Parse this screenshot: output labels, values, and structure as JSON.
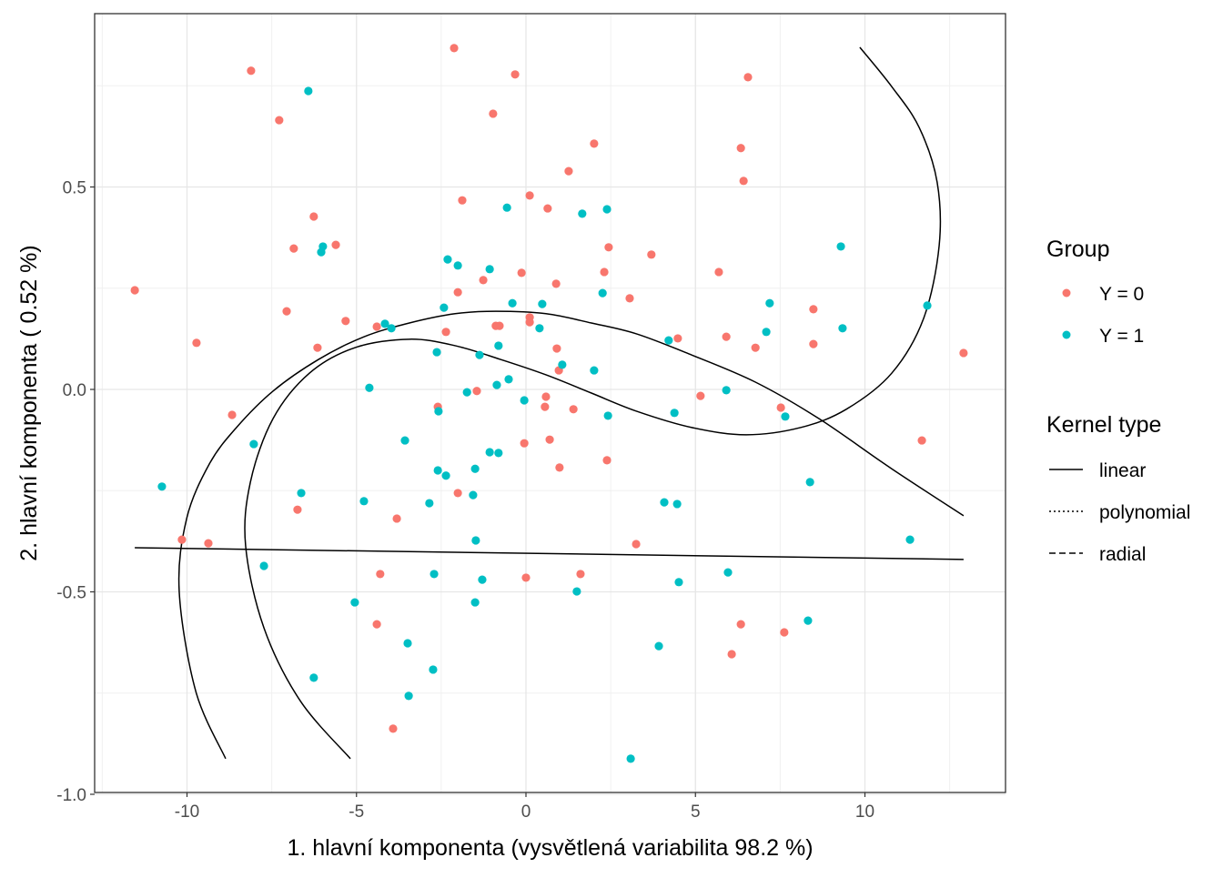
{
  "chart_data": {
    "type": "scatter",
    "xlabel": "1. hlavní komponenta (vysvětlená variabilita 98.2 %)",
    "ylabel": "2. hlavní komponenta ( 0.52 %)",
    "xlim": [
      -12.72,
      14.15
    ],
    "ylim": [
      -1.0,
      0.928
    ],
    "x_ticks": [
      "-10",
      "-5",
      "0",
      "5",
      "10"
    ],
    "x_tick_values": [
      -10,
      -5,
      0,
      5,
      10
    ],
    "y_ticks": [
      "-1.0",
      "-0.5",
      "0.0",
      "0.5"
    ],
    "y_tick_values": [
      -1.0,
      -0.5,
      0.0,
      0.5
    ],
    "grid": true,
    "legend_placement": "right",
    "legend_group": {
      "title": "Group",
      "entries": [
        {
          "label": "Y = 0",
          "color": "#F8766D"
        },
        {
          "label": "Y = 1",
          "color": "#00BFC4"
        }
      ]
    },
    "legend_kernel": {
      "title": "Kernel type",
      "entries": [
        {
          "label": "linear",
          "dash": "none"
        },
        {
          "label": "polynomial",
          "dash": "2,3"
        },
        {
          "label": "radial",
          "dash": "7,4"
        }
      ]
    },
    "series": [
      {
        "name": "Y = 0",
        "color": "#F8766D",
        "points": [
          [
            -11.54,
            0.245
          ],
          [
            -8.11,
            0.787
          ],
          [
            -7.28,
            0.665
          ],
          [
            -9.72,
            0.115
          ],
          [
            -8.67,
            -0.063
          ],
          [
            -10.15,
            -0.371
          ],
          [
            -9.37,
            -0.38
          ],
          [
            -7.06,
            0.193
          ],
          [
            -6.85,
            0.348
          ],
          [
            -6.26,
            0.427
          ],
          [
            -6.15,
            0.103
          ],
          [
            -5.61,
            0.357
          ],
          [
            -5.32,
            0.169
          ],
          [
            -6.74,
            -0.297
          ],
          [
            -4.4,
            0.155
          ],
          [
            -4.3,
            -0.456
          ],
          [
            -4.4,
            -0.58
          ],
          [
            -3.81,
            -0.319
          ],
          [
            -3.92,
            -0.838
          ],
          [
            -2.12,
            0.843
          ],
          [
            -0.32,
            0.778
          ],
          [
            -0.97,
            0.681
          ],
          [
            -1.88,
            0.467
          ],
          [
            -2.01,
            0.24
          ],
          [
            -2.36,
            0.142
          ],
          [
            -2.6,
            -0.043
          ],
          [
            -2.01,
            -0.256
          ],
          [
            -1.45,
            -0.004
          ],
          [
            -1.26,
            0.27
          ],
          [
            -0.89,
            0.157
          ],
          [
            -0.78,
            0.157
          ],
          [
            -0.13,
            0.288
          ],
          [
            0.11,
            0.479
          ],
          [
            0.11,
            0.178
          ],
          [
            0.11,
            0.166
          ],
          [
            -0.05,
            -0.133
          ],
          [
            0.0,
            -0.465
          ],
          [
            0.64,
            0.447
          ],
          [
            0.89,
            0.261
          ],
          [
            0.91,
            0.101
          ],
          [
            0.97,
            0.047
          ],
          [
            0.99,
            -0.193
          ],
          [
            0.59,
            -0.018
          ],
          [
            0.56,
            -0.043
          ],
          [
            0.7,
            -0.124
          ],
          [
            1.26,
            0.539
          ],
          [
            2.01,
            0.607
          ],
          [
            1.4,
            -0.049
          ],
          [
            2.31,
            0.29
          ],
          [
            2.44,
            0.351
          ],
          [
            2.39,
            -0.175
          ],
          [
            1.61,
            -0.456
          ],
          [
            3.06,
            0.225
          ],
          [
            3.25,
            -0.382
          ],
          [
            3.7,
            0.333
          ],
          [
            4.48,
            0.126
          ],
          [
            5.15,
            -0.016
          ],
          [
            5.69,
            0.29
          ],
          [
            5.91,
            0.13
          ],
          [
            6.34,
            0.596
          ],
          [
            6.42,
            0.515
          ],
          [
            6.55,
            0.771
          ],
          [
            6.77,
            0.103
          ],
          [
            6.34,
            -0.58
          ],
          [
            6.07,
            -0.654
          ],
          [
            7.52,
            -0.045
          ],
          [
            7.62,
            -0.6
          ],
          [
            8.48,
            0.198
          ],
          [
            8.48,
            0.112
          ],
          [
            11.68,
            -0.126
          ],
          [
            12.91,
            0.09
          ]
        ]
      },
      {
        "name": "Y = 1",
        "color": "#00BFC4",
        "points": [
          [
            -6.42,
            0.737
          ],
          [
            -5.99,
            0.353
          ],
          [
            -6.04,
            0.339
          ],
          [
            -10.74,
            -0.24
          ],
          [
            -8.03,
            -0.135
          ],
          [
            -7.73,
            -0.436
          ],
          [
            -6.63,
            -0.256
          ],
          [
            -6.26,
            -0.712
          ],
          [
            -5.05,
            -0.526
          ],
          [
            -4.78,
            -0.276
          ],
          [
            -4.62,
            0.004
          ],
          [
            -4.16,
            0.162
          ],
          [
            -3.97,
            0.151
          ],
          [
            -3.57,
            -0.126
          ],
          [
            -3.49,
            -0.627
          ],
          [
            -3.46,
            -0.757
          ],
          [
            -2.85,
            -0.281
          ],
          [
            -2.71,
            -0.456
          ],
          [
            -2.74,
            -0.692
          ],
          [
            -2.63,
            0.092
          ],
          [
            -2.6,
            -0.2
          ],
          [
            -2.58,
            -0.054
          ],
          [
            -2.36,
            -0.213
          ],
          [
            -2.42,
            0.202
          ],
          [
            -2.31,
            0.321
          ],
          [
            -2.01,
            0.306
          ],
          [
            -1.74,
            -0.007
          ],
          [
            -1.5,
            -0.196
          ],
          [
            -1.56,
            -0.261
          ],
          [
            -1.48,
            -0.373
          ],
          [
            -1.5,
            -0.526
          ],
          [
            -1.37,
            0.085
          ],
          [
            -1.29,
            -0.47
          ],
          [
            -1.07,
            0.297
          ],
          [
            -1.07,
            -0.155
          ],
          [
            -0.81,
            -0.157
          ],
          [
            -0.86,
            0.011
          ],
          [
            -0.81,
            0.108
          ],
          [
            -0.56,
            0.449
          ],
          [
            -0.51,
            0.025
          ],
          [
            -0.4,
            0.213
          ],
          [
            -0.05,
            -0.027
          ],
          [
            0.4,
            0.151
          ],
          [
            0.48,
            0.211
          ],
          [
            1.07,
            0.061
          ],
          [
            1.5,
            -0.499
          ],
          [
            1.66,
            0.434
          ],
          [
            2.01,
            0.047
          ],
          [
            2.26,
            0.238
          ],
          [
            2.39,
            0.445
          ],
          [
            2.42,
            -0.065
          ],
          [
            3.09,
            -0.912
          ],
          [
            3.92,
            -0.634
          ],
          [
            4.08,
            -0.279
          ],
          [
            4.21,
            0.121
          ],
          [
            4.38,
            -0.058
          ],
          [
            4.46,
            -0.283
          ],
          [
            4.51,
            -0.476
          ],
          [
            5.91,
            -0.002
          ],
          [
            5.96,
            -0.452
          ],
          [
            7.09,
            0.142
          ],
          [
            7.19,
            0.213
          ],
          [
            7.65,
            -0.067
          ],
          [
            8.38,
            -0.229
          ],
          [
            8.32,
            -0.571
          ],
          [
            9.29,
            0.353
          ],
          [
            9.34,
            0.151
          ],
          [
            11.33,
            -0.371
          ],
          [
            11.84,
            0.207
          ]
        ]
      }
    ],
    "boundaries": [
      {
        "name": "linear",
        "points": [
          [
            -11.54,
            -0.391
          ],
          [
            12.91,
            -0.42
          ]
        ]
      },
      {
        "name": "polynomial",
        "points": [
          [
            -8.86,
            -0.912
          ],
          [
            -9.74,
            -0.746
          ],
          [
            -10.23,
            -0.499
          ],
          [
            -10.01,
            -0.319
          ],
          [
            -9.34,
            -0.184
          ],
          [
            -8.54,
            -0.094
          ],
          [
            -7.46,
            -0.004
          ],
          [
            -6.12,
            0.074
          ],
          [
            -4.78,
            0.13
          ],
          [
            -3.44,
            0.164
          ],
          [
            -2.09,
            0.187
          ],
          [
            -0.89,
            0.193
          ],
          [
            0.59,
            0.187
          ],
          [
            1.93,
            0.164
          ],
          [
            3.27,
            0.137
          ],
          [
            4.89,
            0.085
          ],
          [
            6.77,
            0.018
          ],
          [
            8.64,
            -0.072
          ],
          [
            10.79,
            -0.196
          ],
          [
            12.91,
            -0.312
          ]
        ]
      },
      {
        "name": "radial",
        "points": [
          [
            -5.18,
            -0.912
          ],
          [
            -6.66,
            -0.769
          ],
          [
            -7.73,
            -0.589
          ],
          [
            -8.27,
            -0.387
          ],
          [
            -8.13,
            -0.229
          ],
          [
            -7.46,
            -0.072
          ],
          [
            -6.39,
            0.04
          ],
          [
            -5.05,
            0.103
          ],
          [
            -3.44,
            0.124
          ],
          [
            -2.09,
            0.108
          ],
          [
            -0.75,
            0.074
          ],
          [
            0.59,
            0.036
          ],
          [
            1.93,
            -0.009
          ],
          [
            3.27,
            -0.054
          ],
          [
            4.89,
            -0.094
          ],
          [
            6.5,
            -0.112
          ],
          [
            8.11,
            -0.094
          ],
          [
            9.45,
            -0.049
          ],
          [
            10.79,
            0.04
          ],
          [
            11.73,
            0.175
          ],
          [
            12.19,
            0.355
          ],
          [
            12.13,
            0.512
          ],
          [
            11.6,
            0.647
          ],
          [
            10.79,
            0.748
          ],
          [
            9.85,
            0.845
          ]
        ]
      }
    ]
  }
}
